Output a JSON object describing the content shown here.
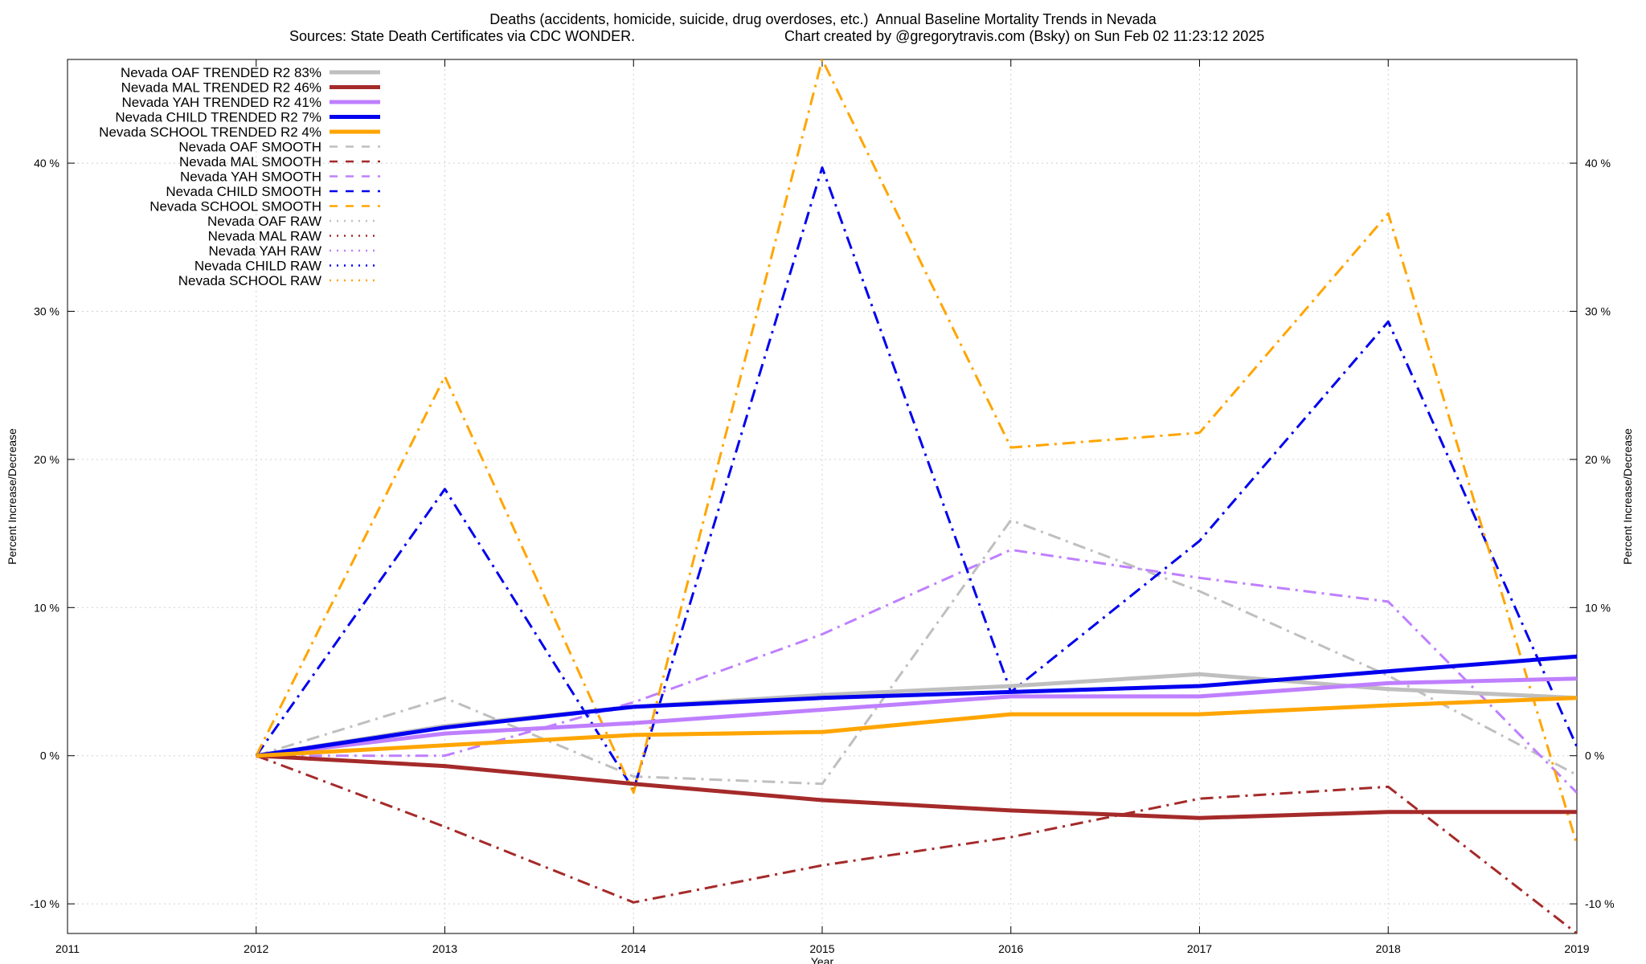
{
  "chart_data": {
    "type": "line",
    "title": "Deaths (accidents, homicide, suicide, drug overdoses, etc.)  Annual Baseline Mortality Trends in Nevada",
    "subtitle_left": "Sources: State Death Certificates via CDC WONDER.",
    "subtitle_right": "Chart created by @gregorytravis.com (Bsky) on Sun Feb 02 11:23:12 2025",
    "xlabel": "Year",
    "ylabel": "Percent Increase/Decrease",
    "y2label": "Percent Increase/Decrease",
    "xlim": [
      2011,
      2019
    ],
    "ylim": [
      -12,
      47
    ],
    "x_ticks": [
      2011,
      2012,
      2013,
      2014,
      2015,
      2016,
      2017,
      2018,
      2019
    ],
    "y_ticks": [
      -10,
      0,
      10,
      20,
      30,
      40
    ],
    "y_tick_labels": [
      "-10 %",
      "0 %",
      "10 %",
      "20 %",
      "30 %",
      "40 %"
    ],
    "grid": true,
    "legend_position": "top-left",
    "series": [
      {
        "name": "Nevada OAF TRENDED R2  83%",
        "color": "#bfbfbf",
        "style": "solid",
        "width": 5,
        "x": [
          2012,
          2013,
          2014,
          2015,
          2016,
          2017,
          2018,
          2019
        ],
        "y": [
          0,
          2.0,
          3.3,
          4.1,
          4.7,
          5.5,
          4.5,
          3.9
        ]
      },
      {
        "name": "Nevada MAL TRENDED R2  46%",
        "color": "#a52a2a",
        "style": "solid",
        "width": 5,
        "x": [
          2012,
          2013,
          2014,
          2015,
          2016,
          2017,
          2018,
          2019
        ],
        "y": [
          0,
          -0.7,
          -1.9,
          -3.0,
          -3.7,
          -4.2,
          -3.8,
          -3.8
        ]
      },
      {
        "name": "Nevada YAH TRENDED R2  41%",
        "color": "#bf7fff",
        "style": "solid",
        "width": 5,
        "x": [
          2012,
          2013,
          2014,
          2015,
          2016,
          2017,
          2018,
          2019
        ],
        "y": [
          0,
          1.5,
          2.2,
          3.1,
          4.0,
          4.0,
          4.9,
          5.2
        ]
      },
      {
        "name": "Nevada CHILD TRENDED R2   7%",
        "color": "#0000ee",
        "style": "solid",
        "width": 5,
        "x": [
          2012,
          2013,
          2014,
          2015,
          2016,
          2017,
          2018,
          2019
        ],
        "y": [
          0,
          1.9,
          3.3,
          3.9,
          4.3,
          4.7,
          5.7,
          6.7
        ]
      },
      {
        "name": "Nevada SCHOOL TRENDED R2   4%",
        "color": "#ffa500",
        "style": "solid",
        "width": 5,
        "x": [
          2012,
          2013,
          2014,
          2015,
          2016,
          2017,
          2018,
          2019
        ],
        "y": [
          0,
          0.7,
          1.4,
          1.6,
          2.8,
          2.8,
          3.4,
          3.9
        ]
      },
      {
        "name": "Nevada OAF SMOOTH",
        "color": "#bfbfbf",
        "style": "dashdot",
        "width": 3,
        "x": [
          2012,
          2013,
          2014,
          2015,
          2016,
          2017,
          2018,
          2019
        ],
        "y": [
          0,
          3.9,
          -1.4,
          -1.9,
          15.9,
          11.1,
          5.4,
          -1.3
        ]
      },
      {
        "name": "Nevada MAL SMOOTH",
        "color": "#a52a2a",
        "style": "dashdot",
        "width": 3,
        "x": [
          2012,
          2013,
          2014,
          2015,
          2016,
          2017,
          2018,
          2019
        ],
        "y": [
          0,
          -4.8,
          -9.9,
          -7.4,
          -5.5,
          -2.9,
          -2.1,
          -12
        ]
      },
      {
        "name": "Nevada YAH SMOOTH",
        "color": "#bf7fff",
        "style": "dashdot",
        "width": 3,
        "x": [
          2012,
          2013,
          2014,
          2015,
          2016,
          2017,
          2018,
          2019
        ],
        "y": [
          0,
          0.0,
          3.6,
          8.2,
          13.9,
          12.0,
          10.4,
          -2.5
        ]
      },
      {
        "name": "Nevada CHILD SMOOTH",
        "color": "#0000ee",
        "style": "dashdot",
        "width": 3,
        "x": [
          2012,
          2013,
          2014,
          2015,
          2016,
          2017,
          2018,
          2019
        ],
        "y": [
          0,
          18.0,
          -2.3,
          39.7,
          4.3,
          14.5,
          29.3,
          0.6
        ]
      },
      {
        "name": "Nevada SCHOOL SMOOTH",
        "color": "#ffa500",
        "style": "dashdot",
        "width": 3,
        "x": [
          2012,
          2013,
          2014,
          2015,
          2016,
          2017,
          2018,
          2019
        ],
        "y": [
          0,
          25.6,
          -2.5,
          47,
          20.8,
          21.8,
          36.6,
          -6.0
        ]
      },
      {
        "name": "Nevada OAF RAW",
        "color": "#bfbfbf",
        "style": "dotted",
        "width": 2,
        "x": [],
        "y": []
      },
      {
        "name": "Nevada MAL RAW",
        "color": "#a52a2a",
        "style": "dotted",
        "width": 2,
        "x": [],
        "y": []
      },
      {
        "name": "Nevada YAH RAW",
        "color": "#bf7fff",
        "style": "dotted",
        "width": 2,
        "x": [],
        "y": []
      },
      {
        "name": "Nevada CHILD RAW",
        "color": "#0000ee",
        "style": "dotted",
        "width": 2,
        "x": [],
        "y": []
      },
      {
        "name": "Nevada SCHOOL RAW",
        "color": "#ffa500",
        "style": "dotted",
        "width": 2,
        "x": [],
        "y": []
      }
    ]
  }
}
